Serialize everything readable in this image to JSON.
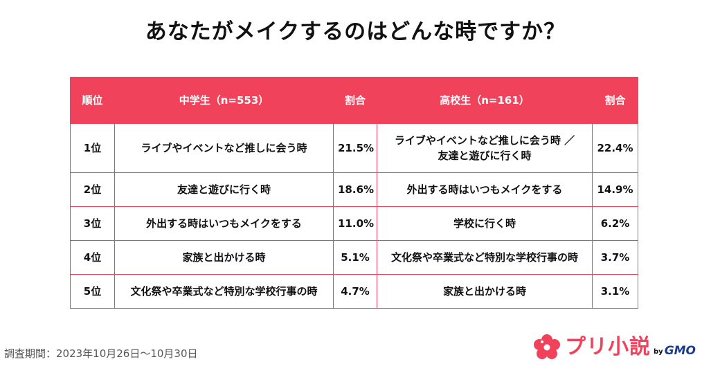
{
  "title": "あなたがメイクするのはどんな時ですか？",
  "table": {
    "headers": {
      "rank": "順位",
      "middle": "中学生（n=553）",
      "middle_pct": "割合",
      "high": "高校生（n=161）",
      "high_pct": "割合"
    },
    "rows": [
      {
        "rank": "1位",
        "middle": "ライブやイベントなど推しに会う時",
        "middle_pct": "21.5%",
        "high_line1": "ライブやイベントなど推しに会う時 ／",
        "high_line2": "友達と遊びに行く時",
        "high_pct": "22.4%"
      },
      {
        "rank": "2位",
        "middle": "友達と遊びに行く時",
        "middle_pct": "18.6%",
        "high": "外出する時はいつもメイクをする",
        "high_pct": "14.9%"
      },
      {
        "rank": "3位",
        "middle": "外出する時はいつもメイクをする",
        "middle_pct": "11.0%",
        "high": "学校に行く時",
        "high_pct": "6.2%"
      },
      {
        "rank": "4位",
        "middle": "家族と出かける時",
        "middle_pct": "5.1%",
        "high": "文化祭や卒業式など特別な学校行事の時",
        "high_pct": "3.7%"
      },
      {
        "rank": "5位",
        "middle": "文化祭や卒業式など特別な学校行事の時",
        "middle_pct": "4.7%",
        "high": "家族と出かける時",
        "high_pct": "3.1%"
      }
    ]
  },
  "footer": {
    "survey_period": "調査期間：2023年10月26日～10月30日"
  },
  "logo": {
    "name": "プリ小説",
    "by": "by",
    "company": "GMO",
    "icon": "flower-icon"
  },
  "colors": {
    "accent": "#f0435b",
    "gmo_blue": "#1a3d8f"
  }
}
